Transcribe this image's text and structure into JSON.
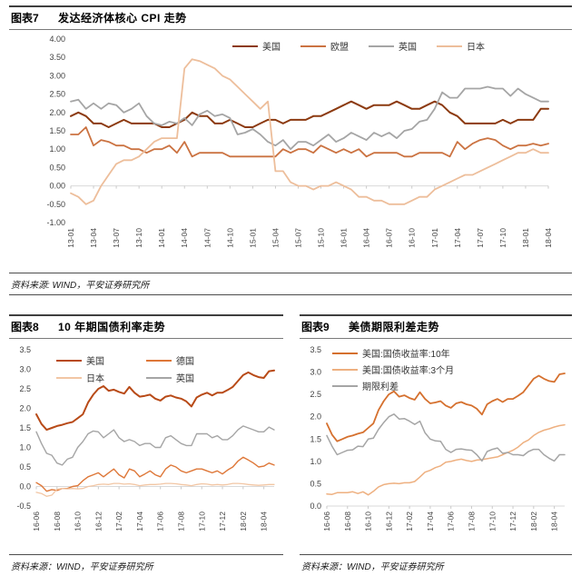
{
  "page": {
    "background": "#ffffff"
  },
  "chart_data": [
    {
      "id": "chart7",
      "figure_label": "图表7",
      "title": "发达经济体核心 CPI 走势",
      "type": "line",
      "source": "资料来源: WIND，平安证券研究所",
      "xlabel": "",
      "ylabel": "",
      "grid": "zero-axis-only",
      "legend_position": "top-center-horizontal",
      "ylim": [
        -1.0,
        4.0
      ],
      "yticks": [
        4.0,
        3.5,
        3.0,
        2.5,
        2.0,
        1.5,
        1.0,
        0.5,
        0.0,
        -0.5,
        -1.0
      ],
      "ytick_labels": [
        "4.00",
        "3.50",
        "3.00",
        "2.50",
        "2.00",
        "1.50",
        "1.00",
        "0.50",
        "0.00",
        "-0.50",
        "-1.00"
      ],
      "n_points": 64,
      "x_labels": [
        "13-01",
        "13-04",
        "13-07",
        "13-10",
        "14-01",
        "14-04",
        "14-07",
        "14-10",
        "15-01",
        "15-04",
        "15-07",
        "15-10",
        "16-01",
        "16-04",
        "16-07",
        "16-10",
        "17-01",
        "17-04",
        "17-07",
        "17-10",
        "18-01",
        "18-04"
      ],
      "x_tick_indices": [
        0,
        3,
        6,
        9,
        12,
        15,
        18,
        21,
        24,
        27,
        30,
        33,
        36,
        39,
        42,
        45,
        48,
        51,
        54,
        57,
        60,
        63
      ],
      "series": [
        {
          "name": "美国",
          "color": "#8C3A10",
          "width": 2,
          "values": [
            1.9,
            2.0,
            1.9,
            1.7,
            1.7,
            1.6,
            1.7,
            1.8,
            1.7,
            1.7,
            1.7,
            1.7,
            1.6,
            1.6,
            1.7,
            1.8,
            2.0,
            1.9,
            1.9,
            1.7,
            1.7,
            1.8,
            1.7,
            1.6,
            1.6,
            1.7,
            1.8,
            1.8,
            1.7,
            1.8,
            1.8,
            1.8,
            1.9,
            1.9,
            2.0,
            2.1,
            2.2,
            2.3,
            2.2,
            2.1,
            2.2,
            2.2,
            2.2,
            2.3,
            2.2,
            2.1,
            2.1,
            2.2,
            2.3,
            2.2,
            2.0,
            1.9,
            1.7,
            1.7,
            1.7,
            1.7,
            1.7,
            1.8,
            1.7,
            1.8,
            1.8,
            1.8,
            2.1,
            2.1
          ]
        },
        {
          "name": "欧盟",
          "color": "#CB7342",
          "width": 1.8,
          "values": [
            1.4,
            1.4,
            1.6,
            1.1,
            1.25,
            1.2,
            1.1,
            1.1,
            1.0,
            1.0,
            0.9,
            1.0,
            1.0,
            1.1,
            0.9,
            1.2,
            0.8,
            0.9,
            0.9,
            0.9,
            0.9,
            0.8,
            0.8,
            0.8,
            0.8,
            0.8,
            0.8,
            0.8,
            1.0,
            0.9,
            1.0,
            1.0,
            0.9,
            1.1,
            1.0,
            0.9,
            1.0,
            0.9,
            1.0,
            0.8,
            0.9,
            0.9,
            0.9,
            0.9,
            0.8,
            0.8,
            0.9,
            0.9,
            0.9,
            0.9,
            0.8,
            1.2,
            1.0,
            1.15,
            1.25,
            1.3,
            1.25,
            1.1,
            1.0,
            1.1,
            1.1,
            1.15,
            1.1,
            1.15
          ]
        },
        {
          "name": "英国",
          "color": "#A5A5A5",
          "width": 1.8,
          "values": [
            2.3,
            2.35,
            2.1,
            2.25,
            2.1,
            2.25,
            2.2,
            2.0,
            2.1,
            2.25,
            1.9,
            1.7,
            1.65,
            1.75,
            1.7,
            1.85,
            1.65,
            1.95,
            2.05,
            1.9,
            1.95,
            1.85,
            1.4,
            1.45,
            1.55,
            1.4,
            1.2,
            1.1,
            1.25,
            1.0,
            1.2,
            1.2,
            1.1,
            1.25,
            1.4,
            1.2,
            1.3,
            1.45,
            1.35,
            1.25,
            1.45,
            1.35,
            1.45,
            1.3,
            1.5,
            1.55,
            1.75,
            1.8,
            2.1,
            2.55,
            2.4,
            2.4,
            2.65,
            2.65,
            2.65,
            2.7,
            2.65,
            2.65,
            2.45,
            2.65,
            2.5,
            2.4,
            2.3,
            2.3
          ]
        },
        {
          "name": "日本",
          "color": "#EDBE9B",
          "width": 1.8,
          "values": [
            -0.2,
            -0.3,
            -0.5,
            -0.4,
            0.0,
            0.3,
            0.6,
            0.7,
            0.7,
            0.8,
            1.0,
            1.2,
            1.3,
            1.3,
            1.3,
            3.2,
            3.45,
            3.4,
            3.3,
            3.2,
            3.0,
            2.9,
            2.7,
            2.5,
            2.3,
            2.1,
            2.3,
            0.4,
            0.4,
            0.1,
            0.0,
            0.0,
            -0.1,
            0.0,
            0.0,
            0.1,
            0.0,
            -0.1,
            -0.3,
            -0.3,
            -0.4,
            -0.4,
            -0.5,
            -0.5,
            -0.5,
            -0.4,
            -0.3,
            -0.3,
            -0.1,
            0.0,
            0.1,
            0.2,
            0.3,
            0.3,
            0.4,
            0.5,
            0.6,
            0.7,
            0.8,
            0.9,
            0.9,
            1.0,
            0.9,
            0.9
          ]
        }
      ]
    },
    {
      "id": "chart8",
      "figure_label": "图表8",
      "title": "10 年期国债利率走势",
      "type": "line",
      "source": "资料来源：WIND，平安证券研究所",
      "xlabel": "",
      "ylabel": "",
      "grid": "zero-axis-only",
      "legend_position": "top-left-two-columns",
      "ylim": [
        -0.5,
        3.5
      ],
      "yticks": [
        3.5,
        3.0,
        2.5,
        2.0,
        1.5,
        1.0,
        0.5,
        0.0,
        -0.5
      ],
      "ytick_labels": [
        "3.5",
        "3.0",
        "2.5",
        "2.0",
        "1.5",
        "1.0",
        "0.5",
        "0.0",
        "-0.5"
      ],
      "n_points": 47,
      "x_labels": [
        "16-06",
        "16-08",
        "16-10",
        "16-12",
        "17-02",
        "17-04",
        "17-06",
        "17-08",
        "17-10",
        "17-12",
        "18-02",
        "18-04"
      ],
      "x_tick_indices": [
        0,
        4,
        8,
        12,
        16,
        20,
        24,
        28,
        32,
        36,
        40,
        44
      ],
      "series": [
        {
          "name": "美国",
          "color": "#B84A17",
          "width": 2,
          "values": [
            1.85,
            1.6,
            1.45,
            1.5,
            1.55,
            1.58,
            1.62,
            1.65,
            1.75,
            1.85,
            2.15,
            2.35,
            2.5,
            2.57,
            2.45,
            2.48,
            2.42,
            2.38,
            2.55,
            2.4,
            2.3,
            2.32,
            2.35,
            2.25,
            2.2,
            2.3,
            2.33,
            2.28,
            2.25,
            2.18,
            2.05,
            2.28,
            2.35,
            2.4,
            2.33,
            2.4,
            2.4,
            2.47,
            2.55,
            2.7,
            2.85,
            2.92,
            2.85,
            2.8,
            2.78,
            2.95,
            2.97
          ]
        },
        {
          "name": "德国",
          "color": "#DE7738",
          "width": 1.4,
          "values": [
            0.1,
            0.02,
            -0.12,
            -0.08,
            -0.1,
            -0.05,
            -0.05,
            0.0,
            0.02,
            0.15,
            0.25,
            0.3,
            0.35,
            0.25,
            0.35,
            0.45,
            0.3,
            0.22,
            0.45,
            0.4,
            0.25,
            0.32,
            0.4,
            0.3,
            0.25,
            0.45,
            0.55,
            0.5,
            0.4,
            0.35,
            0.4,
            0.45,
            0.45,
            0.4,
            0.35,
            0.4,
            0.32,
            0.42,
            0.5,
            0.65,
            0.75,
            0.68,
            0.6,
            0.5,
            0.52,
            0.6,
            0.55
          ]
        },
        {
          "name": "日本",
          "color": "#F2C6A4",
          "width": 1.3,
          "values": [
            -0.15,
            -0.18,
            -0.25,
            -0.22,
            -0.07,
            -0.05,
            -0.06,
            -0.05,
            -0.06,
            -0.05,
            0.0,
            0.02,
            0.05,
            0.06,
            0.05,
            0.08,
            0.08,
            0.06,
            0.07,
            0.05,
            0.02,
            0.04,
            0.05,
            0.05,
            0.06,
            0.08,
            0.08,
            0.07,
            0.05,
            0.04,
            0.02,
            0.05,
            0.07,
            0.06,
            0.04,
            0.05,
            0.04,
            0.05,
            0.08,
            0.08,
            0.07,
            0.05,
            0.04,
            0.03,
            0.04,
            0.05,
            0.05
          ]
        },
        {
          "name": "英国",
          "color": "#A5A5A5",
          "width": 1.4,
          "values": [
            1.4,
            1.1,
            0.85,
            0.8,
            0.6,
            0.55,
            0.7,
            0.75,
            1.0,
            1.15,
            1.35,
            1.42,
            1.4,
            1.25,
            1.35,
            1.45,
            1.25,
            1.15,
            1.2,
            1.15,
            1.05,
            1.1,
            1.1,
            1.0,
            1.0,
            1.25,
            1.3,
            1.2,
            1.1,
            1.05,
            1.05,
            1.35,
            1.35,
            1.35,
            1.25,
            1.3,
            1.2,
            1.2,
            1.3,
            1.45,
            1.55,
            1.5,
            1.45,
            1.4,
            1.4,
            1.52,
            1.45
          ]
        }
      ]
    },
    {
      "id": "chart9",
      "figure_label": "图表9",
      "title": "美债期限利差走势",
      "type": "line",
      "source": "资料来源：WIND，平安证券研究所",
      "xlabel": "",
      "ylabel": "",
      "grid": "zero-axis-only",
      "legend_position": "top-left-stacked",
      "ylim": [
        0.0,
        3.5
      ],
      "yticks": [
        3.5,
        3.0,
        2.5,
        2.0,
        1.5,
        1.0,
        0.5,
        0.0
      ],
      "ytick_labels": [
        "3.5",
        "3.0",
        "2.5",
        "2.0",
        "1.5",
        "1.0",
        "0.5",
        "0.0"
      ],
      "n_points": 47,
      "x_labels": [
        "16-06",
        "16-08",
        "16-10",
        "16-12",
        "17-02",
        "17-04",
        "17-06",
        "17-08",
        "17-10",
        "17-12",
        "18-02",
        "18-04"
      ],
      "x_tick_indices": [
        0,
        4,
        8,
        12,
        16,
        20,
        24,
        28,
        32,
        36,
        40,
        44
      ],
      "series": [
        {
          "name": "美国:国债收益率:10年",
          "color": "#D5702E",
          "width": 1.8,
          "values": [
            1.85,
            1.6,
            1.45,
            1.5,
            1.55,
            1.58,
            1.62,
            1.65,
            1.75,
            1.85,
            2.15,
            2.35,
            2.5,
            2.57,
            2.45,
            2.48,
            2.42,
            2.38,
            2.55,
            2.4,
            2.3,
            2.32,
            2.35,
            2.25,
            2.2,
            2.3,
            2.33,
            2.28,
            2.25,
            2.18,
            2.05,
            2.28,
            2.35,
            2.4,
            2.33,
            2.4,
            2.4,
            2.47,
            2.55,
            2.7,
            2.85,
            2.92,
            2.85,
            2.8,
            2.78,
            2.95,
            2.97
          ]
        },
        {
          "name": "美国:国债收益率:3个月",
          "color": "#EEB080",
          "width": 1.5,
          "values": [
            0.27,
            0.26,
            0.3,
            0.3,
            0.3,
            0.32,
            0.28,
            0.32,
            0.25,
            0.33,
            0.43,
            0.48,
            0.5,
            0.51,
            0.5,
            0.52,
            0.52,
            0.55,
            0.65,
            0.76,
            0.8,
            0.86,
            0.9,
            0.98,
            1.0,
            1.03,
            1.05,
            1.02,
            1.0,
            1.03,
            1.04,
            1.06,
            1.08,
            1.1,
            1.15,
            1.2,
            1.25,
            1.32,
            1.42,
            1.48,
            1.58,
            1.65,
            1.7,
            1.73,
            1.77,
            1.8,
            1.82
          ]
        },
        {
          "name": "期限利差",
          "color": "#A5A5A5",
          "width": 1.5,
          "values": [
            1.58,
            1.34,
            1.15,
            1.2,
            1.25,
            1.26,
            1.34,
            1.33,
            1.5,
            1.52,
            1.72,
            1.87,
            2.0,
            2.06,
            1.95,
            1.96,
            1.9,
            1.83,
            1.9,
            1.64,
            1.5,
            1.46,
            1.45,
            1.27,
            1.2,
            1.27,
            1.28,
            1.26,
            1.25,
            1.15,
            1.01,
            1.22,
            1.27,
            1.3,
            1.18,
            1.2,
            1.15,
            1.15,
            1.13,
            1.22,
            1.27,
            1.27,
            1.15,
            1.07,
            1.01,
            1.15,
            1.15
          ]
        }
      ]
    }
  ]
}
